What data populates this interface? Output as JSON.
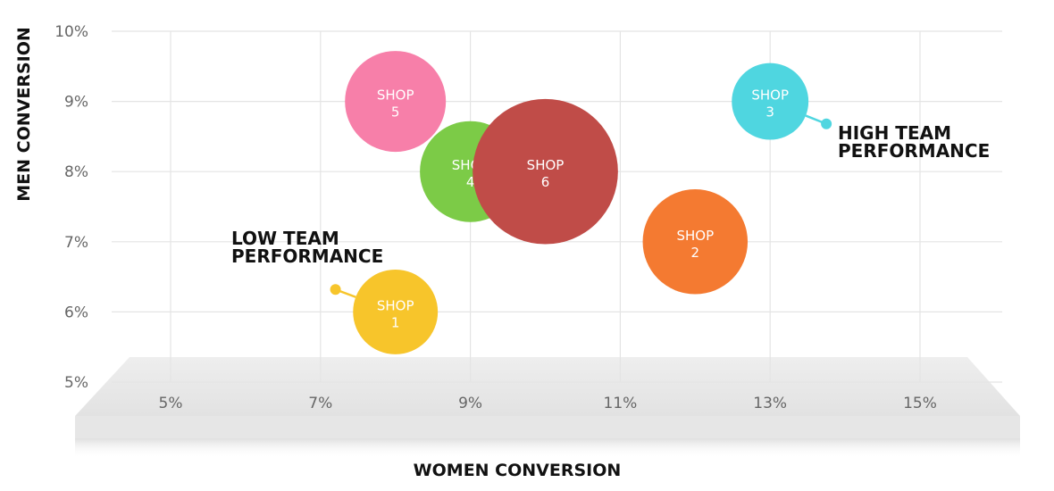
{
  "chart_data": {
    "type": "scatter",
    "xlabel": "WOMEN CONVERSION",
    "ylabel": "MEN CONVERSION",
    "xlim": [
      4,
      16
    ],
    "ylim": [
      5,
      10
    ],
    "x_ticks": [
      "5%",
      "7%",
      "9%",
      "11%",
      "13%",
      "15%"
    ],
    "x_tick_values": [
      5,
      7,
      9,
      11,
      13,
      15
    ],
    "y_ticks": [
      "5%",
      "6%",
      "7%",
      "8%",
      "9%",
      "10%"
    ],
    "y_tick_values": [
      5,
      6,
      7,
      8,
      9,
      10
    ],
    "grid": true,
    "points": [
      {
        "label_line1": "SHOP",
        "label_line2": "1",
        "x": 8,
        "y": 6,
        "size": 2.1,
        "color": "#f7c52b"
      },
      {
        "label_line1": "SHOP",
        "label_line2": "2",
        "x": 12,
        "y": 7,
        "size": 2.6,
        "color": "#f47a31"
      },
      {
        "label_line1": "SHOP",
        "label_line2": "3",
        "x": 13,
        "y": 9,
        "size": 1.9,
        "color": "#4fd6e0"
      },
      {
        "label_line1": "SHOP",
        "label_line2": "4",
        "x": 9,
        "y": 8,
        "size": 2.5,
        "color": "#7ccb47"
      },
      {
        "label_line1": "SHOP",
        "label_line2": "5",
        "x": 8,
        "y": 9,
        "size": 2.5,
        "color": "#f77fa9"
      },
      {
        "label_line1": "SHOP",
        "label_line2": "6",
        "x": 10,
        "y": 8,
        "size": 3.6,
        "color": "#c04c48"
      }
    ],
    "annotations": [
      {
        "line1": "LOW TEAM",
        "line2": "PERFORMANCE",
        "x": 7.2,
        "y": 6.32,
        "color": "#f7c52b",
        "connect_to": 0
      },
      {
        "line1": "HIGH TEAM",
        "line2": "PERFORMANCE",
        "x": 13.75,
        "y": 8.68,
        "color": "#4fd6e0",
        "connect_to": 2
      }
    ]
  }
}
